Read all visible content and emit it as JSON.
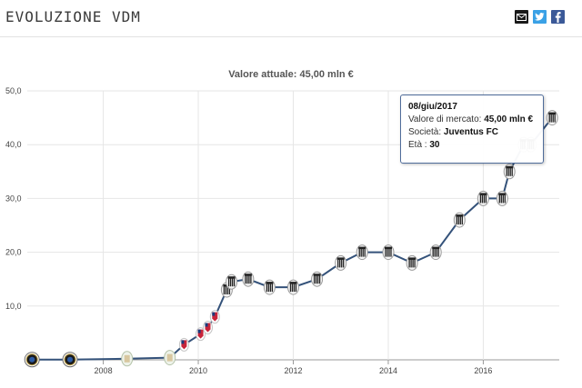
{
  "header": {
    "title": "EVOLUZIONE VDM",
    "share_icons": [
      "email-icon",
      "twitter-icon",
      "facebook-icon"
    ]
  },
  "tooltip": {
    "date": "08/giu/2017",
    "value_label": "Valore di mercato:",
    "value": "45,00 mln €",
    "club_label": "Società:",
    "club": "Juventus FC",
    "age_label": "Età :",
    "age": "30"
  },
  "colors": {
    "line": "#34527a",
    "grid": "#e6e6e6",
    "tooltip_border": "#4f6c9a"
  },
  "chart_data": {
    "type": "line",
    "title": "Valore attuale: 45,00 mln €",
    "xlabel": "",
    "ylabel": "",
    "yticks": [
      "50,0",
      "40,0",
      "30,0",
      "20,0",
      "10,0"
    ],
    "xticks": [
      "2008",
      "2010",
      "2012",
      "2014",
      "2016"
    ],
    "ylim": [
      0,
      50
    ],
    "xlim": [
      2006.4,
      2017.6
    ],
    "grid": true,
    "series": [
      {
        "values": [
          {
            "x": 2006.5,
            "y": 0.05,
            "club": "inter"
          },
          {
            "x": 2007.3,
            "y": 0.05,
            "club": "inter"
          },
          {
            "x": 2008.5,
            "y": 0.2,
            "club": "other"
          },
          {
            "x": 2009.4,
            "y": 0.4,
            "club": "other"
          },
          {
            "x": 2009.7,
            "y": 2.8,
            "club": "genoa"
          },
          {
            "x": 2010.05,
            "y": 4.8,
            "club": "genoa"
          },
          {
            "x": 2010.2,
            "y": 6.0,
            "club": "genoa"
          },
          {
            "x": 2010.35,
            "y": 8.0,
            "club": "genoa"
          },
          {
            "x": 2010.6,
            "y": 13.0,
            "club": "juventus"
          },
          {
            "x": 2010.7,
            "y": 14.5,
            "club": "juventus"
          },
          {
            "x": 2011.05,
            "y": 15.0,
            "club": "juventus"
          },
          {
            "x": 2011.5,
            "y": 13.5,
            "club": "juventus"
          },
          {
            "x": 2012.0,
            "y": 13.5,
            "club": "juventus"
          },
          {
            "x": 2012.5,
            "y": 15.0,
            "club": "juventus"
          },
          {
            "x": 2013.0,
            "y": 18.0,
            "club": "juventus"
          },
          {
            "x": 2013.45,
            "y": 20.0,
            "club": "juventus"
          },
          {
            "x": 2014.0,
            "y": 20.0,
            "club": "juventus"
          },
          {
            "x": 2014.5,
            "y": 18.0,
            "club": "juventus"
          },
          {
            "x": 2015.0,
            "y": 20.0,
            "club": "juventus"
          },
          {
            "x": 2015.5,
            "y": 26.0,
            "club": "juventus"
          },
          {
            "x": 2016.0,
            "y": 30.0,
            "club": "juventus"
          },
          {
            "x": 2016.4,
            "y": 30.0,
            "club": "juventus"
          },
          {
            "x": 2016.55,
            "y": 35.0,
            "club": "juventus"
          },
          {
            "x": 2016.85,
            "y": 40.0,
            "club": "juventus"
          },
          {
            "x": 2017.0,
            "y": 40.0,
            "club": "juventus"
          },
          {
            "x": 2017.45,
            "y": 45.0,
            "club": "juventus"
          }
        ]
      }
    ]
  }
}
